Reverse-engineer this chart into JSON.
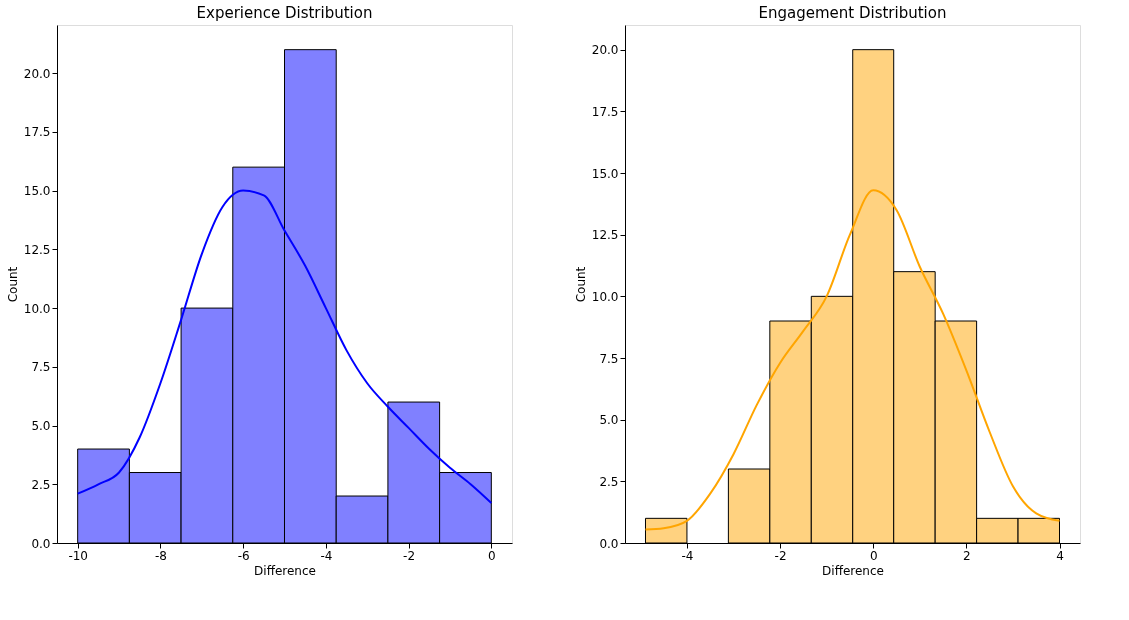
{
  "chart_data": [
    {
      "type": "histogram",
      "title": "Experience Distribution",
      "xlabel": "Difference",
      "ylabel": "Count",
      "bins": [
        -10,
        -8.75,
        -7.5,
        -6.25,
        -5,
        -3.75,
        -2.5,
        -1.25,
        0
      ],
      "values": [
        4,
        3,
        10,
        16,
        21,
        2,
        6,
        3
      ],
      "color": "#8080ff",
      "series": [
        {
          "type": "line",
          "color": "#0000ff",
          "x": [
            -10,
            -9.5,
            -9,
            -8.5,
            -8,
            -7.5,
            -7,
            -6.5,
            -6,
            -5.5,
            -5,
            -4.5,
            -4,
            -3.5,
            -3,
            -2.5,
            -2,
            -1.5,
            -1,
            -0.5,
            0
          ],
          "values": [
            2.1,
            2.5,
            3.0,
            4.5,
            6.8,
            9.5,
            12.3,
            14.3,
            15.0,
            14.8,
            13.3,
            11.8,
            10.0,
            8.2,
            6.8,
            5.8,
            4.9,
            4.0,
            3.2,
            2.5,
            1.7
          ]
        }
      ],
      "xlim": [
        -10.5,
        0.5
      ],
      "xticks": [
        -10,
        -8,
        -6,
        -4,
        -2,
        0
      ],
      "ylim": [
        0,
        22.05
      ],
      "yticks": [
        {
          "value": 0,
          "label": "0.0"
        },
        {
          "value": 2.5,
          "label": "2.5"
        },
        {
          "value": 5,
          "label": "5.0"
        },
        {
          "value": 7.5,
          "label": "7.5"
        },
        {
          "value": 10,
          "label": "10.0"
        },
        {
          "value": 12.5,
          "label": "12.5"
        },
        {
          "value": 15,
          "label": "15.0"
        },
        {
          "value": 17.5,
          "label": "17.5"
        },
        {
          "value": 20,
          "label": "20.0"
        }
      ],
      "grid": false
    },
    {
      "type": "histogram",
      "title": "Engagement Distribution",
      "xlabel": "Difference",
      "ylabel": "Count",
      "bins": [
        -4.89,
        -4,
        -3.11,
        -2.22,
        -1.33,
        -0.44,
        0.44,
        1.33,
        2.22,
        3.11,
        4
      ],
      "values": [
        1,
        0,
        3,
        9,
        10,
        20,
        11,
        9,
        1,
        1
      ],
      "color": "#ffd280",
      "series": [
        {
          "type": "line",
          "color": "#ffa500",
          "x": [
            -4.89,
            -4.5,
            -4,
            -3.5,
            -3,
            -2.5,
            -2,
            -1.5,
            -1,
            -0.5,
            0,
            0.5,
            1,
            1.5,
            2,
            2.5,
            3,
            3.5,
            4
          ],
          "values": [
            0.55,
            0.6,
            0.9,
            2.0,
            3.6,
            5.6,
            7.3,
            8.6,
            10.0,
            12.5,
            14.3,
            13.5,
            11.2,
            9.3,
            7.0,
            4.5,
            2.3,
            1.2,
            0.9
          ]
        }
      ],
      "xlim": [
        -5.33,
        4.44
      ],
      "xticks": [
        -4,
        -2,
        0,
        2,
        4
      ],
      "ylim": [
        0,
        21
      ],
      "yticks": [
        {
          "value": 0,
          "label": "0.0"
        },
        {
          "value": 2.5,
          "label": "2.5"
        },
        {
          "value": 5,
          "label": "5.0"
        },
        {
          "value": 7.5,
          "label": "7.5"
        },
        {
          "value": 10,
          "label": "10.0"
        },
        {
          "value": 12.5,
          "label": "12.5"
        },
        {
          "value": 15,
          "label": "15.0"
        },
        {
          "value": 17.5,
          "label": "17.5"
        },
        {
          "value": 20,
          "label": "20.0"
        }
      ],
      "grid": false
    }
  ]
}
